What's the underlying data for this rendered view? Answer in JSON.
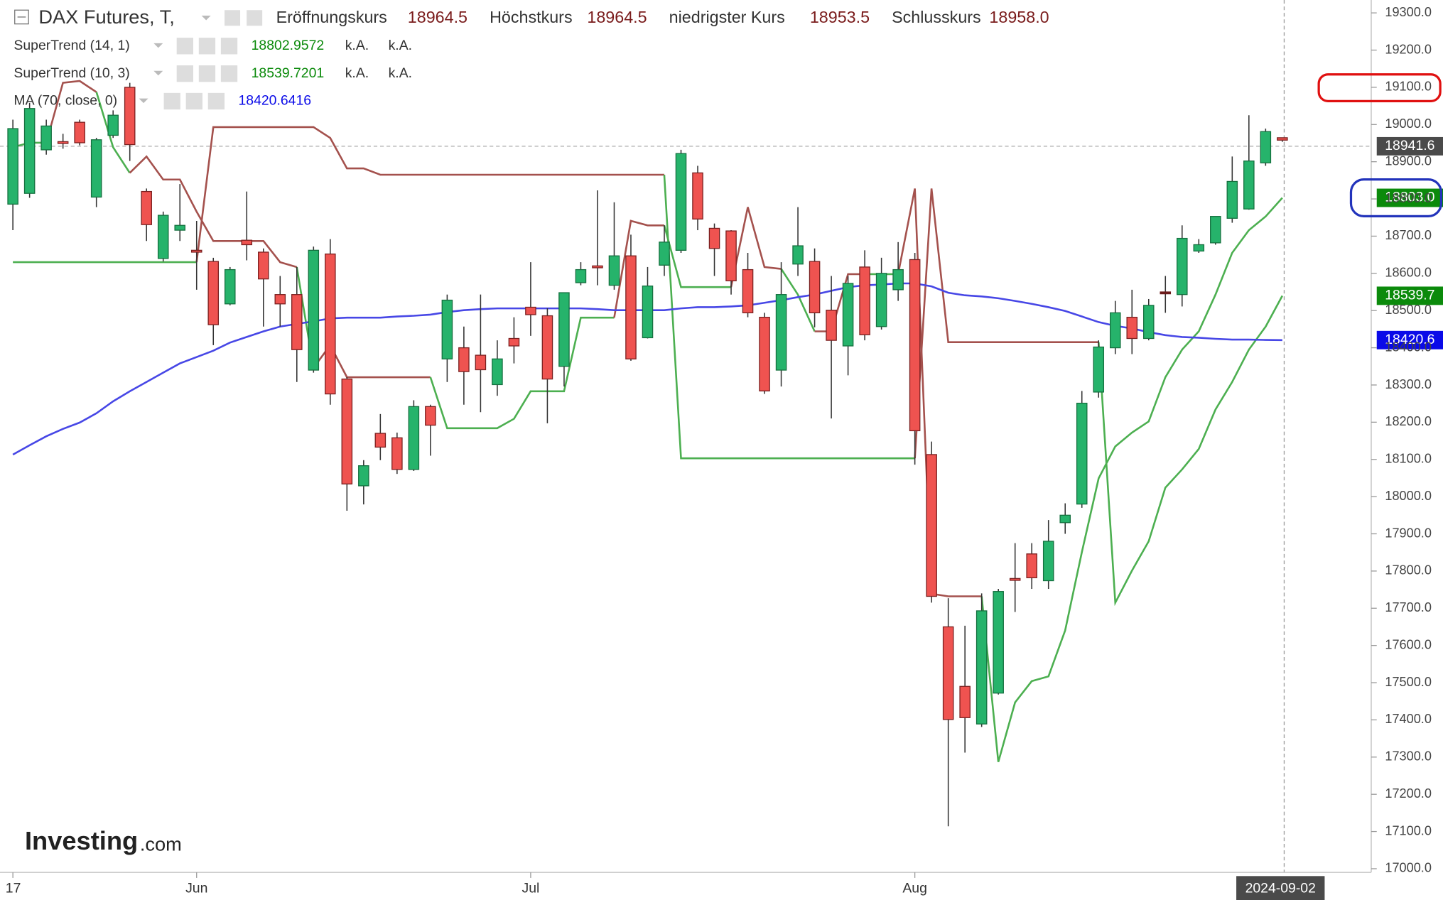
{
  "chart_data": {
    "type": "candlestick",
    "title": "DAX Futures, T,",
    "ohlc_fields": [
      {
        "name": "Eröffnungskurs",
        "value": "18964.5"
      },
      {
        "name": "Höchstkurs",
        "value": "18964.5"
      },
      {
        "name": "niedrigster Kurs",
        "value": "18953.5"
      },
      {
        "name": "Schlusskurs",
        "value": "18958.0"
      }
    ],
    "watermark": {
      "brand": "Investing",
      "suffix": ".com"
    },
    "categories": [
      "17",
      null,
      null,
      null,
      null,
      null,
      null,
      null,
      null,
      null,
      null,
      "Jun",
      null,
      null,
      null,
      null,
      null,
      null,
      null,
      null,
      null,
      null,
      null,
      null,
      null,
      null,
      null,
      null,
      null,
      null,
      null,
      "Jul",
      null,
      null,
      null,
      null,
      null,
      null,
      null,
      null,
      null,
      null,
      null,
      null,
      null,
      null,
      null,
      null,
      null,
      null,
      null,
      null,
      null,
      null,
      "Aug",
      null,
      null,
      null,
      null,
      null,
      null,
      null,
      null,
      null,
      null,
      null,
      null,
      null,
      null,
      null,
      null,
      null,
      null,
      null,
      null,
      null,
      null
    ],
    "open": [
      18786,
      18815,
      18932,
      18954,
      19006,
      18805,
      18971,
      19100,
      18820,
      18640,
      18716,
      18662,
      18632,
      18518,
      18689,
      18657,
      18543,
      18543,
      18340,
      18652,
      18316,
      18029,
      18170,
      18158,
      18073,
      18242,
      18370,
      18400,
      18380,
      18301,
      18425,
      18509,
      18486,
      18350,
      18575,
      18620,
      18568,
      18647,
      18427,
      18622,
      18662,
      18870,
      18721,
      18714,
      18610,
      18482,
      18340,
      18625,
      18632,
      18501,
      18405,
      18617,
      18457,
      18556,
      18637,
      18113,
      17650,
      17490,
      17389,
      17472,
      17780,
      17846,
      17774,
      17930,
      17980,
      18281,
      18400,
      18482,
      18425,
      18550,
      18543,
      18660,
      18682,
      18748,
      18773,
      18897,
      18964.5
    ],
    "high": [
      19013,
      19058,
      19013,
      18975,
      19013,
      18964,
      19038,
      19112,
      18828,
      18766,
      18840,
      18741,
      18642,
      18617,
      18820,
      18667,
      18593,
      18617,
      18672,
      18692,
      18321,
      18098,
      18222,
      18172,
      18259,
      18247,
      18543,
      18457,
      18543,
      18420,
      18482,
      18630,
      18506,
      18548,
      18630,
      18823,
      18791,
      18704,
      18617,
      18729,
      18932,
      18889,
      18734,
      18716,
      18655,
      18494,
      18630,
      18778,
      18667,
      18593,
      18593,
      18662,
      18642,
      18684,
      18655,
      18148,
      17727,
      17653,
      17740,
      17752,
      17875,
      17875,
      17937,
      17982,
      18284,
      18420,
      18526,
      18556,
      18531,
      18593,
      18729,
      18692,
      18753,
      18914,
      19025,
      18989,
      18964.5
    ],
    "low": [
      18716,
      18803,
      18919,
      18935,
      18944,
      18778,
      18964,
      18902,
      18687,
      18632,
      18687,
      18556,
      18407,
      18514,
      18635,
      18457,
      18457,
      18308,
      18333,
      18247,
      17962,
      17979,
      18098,
      18061,
      18069,
      18110,
      18308,
      18247,
      18227,
      18271,
      18358,
      18432,
      18197,
      18296,
      18568,
      18568,
      18556,
      18365,
      18425,
      18593,
      18655,
      18716,
      18593,
      18543,
      18482,
      18276,
      18296,
      18593,
      18455,
      18210,
      18326,
      18420,
      18449,
      18526,
      18086,
      17715,
      17114,
      17312,
      17381,
      17468,
      17690,
      17752,
      17752,
      17900,
      17970,
      18266,
      18383,
      18383,
      18420,
      18494,
      18511,
      18655,
      18677,
      18736,
      18771,
      18889,
      18953.5
    ],
    "close": [
      18989,
      19043,
      18996,
      18950,
      18951,
      18959,
      19025,
      18946,
      18731,
      18756,
      18729,
      18657,
      18462,
      18610,
      18677,
      18585,
      18518,
      18395,
      18662,
      18276,
      18034,
      18083,
      18133,
      18073,
      18242,
      18192,
      18528,
      18336,
      18341,
      18370,
      18405,
      18489,
      18316,
      18548,
      18610,
      18615,
      18647,
      18370,
      18566,
      18684,
      18922,
      18746,
      18667,
      18580,
      18494,
      18284,
      18543,
      18674,
      18494,
      18420,
      18573,
      18435,
      18600,
      18610,
      18177,
      17732,
      17401,
      17406,
      17693,
      17745,
      17775,
      17782,
      17880,
      17950,
      18251,
      18402,
      18494,
      18425,
      18514,
      18550,
      18694,
      18677,
      18753,
      18847,
      18902,
      18981,
      18958
    ],
    "up_color": "#26b36b",
    "down_color": "#ef5350",
    "series": [
      {
        "name": "SuperTrend (14, 1)",
        "style": "supertrend",
        "color": "#4caf50",
        "down_color": "#a4514d",
        "tag_color": "#0b8a0b",
        "extra_labels": [
          "k.A.",
          "k.A."
        ],
        "last_value_label": "18803.0",
        "values": [
          18939,
          18951,
          18951,
          19112,
          19117,
          19087,
          18939,
          18870,
          18914,
          18852,
          18852,
          18766,
          18687,
          18687,
          18687,
          18687,
          18630,
          18617,
          18346,
          18407,
          18321,
          18321,
          18321,
          18321,
          18321,
          18321,
          18184,
          18184,
          18184,
          18184,
          18209,
          18283,
          18283,
          18283,
          18481,
          18481,
          18481,
          18741,
          18729,
          18729,
          18563,
          18563,
          18563,
          18563,
          18778,
          18617,
          18612,
          18543,
          18444,
          18444,
          18598,
          18598,
          18598,
          18598,
          18828,
          17739,
          17732,
          17732,
          17732,
          17287,
          17447,
          17504,
          17517,
          17640,
          17851,
          18049,
          18135,
          18172,
          18202,
          18321,
          18395,
          18444,
          18543,
          18655,
          18716,
          18753,
          18802.9572
        ]
      },
      {
        "name": "SuperTrend (10, 3)",
        "style": "supertrend",
        "color": "#4caf50",
        "down_color": "#a4514d",
        "tag_color": "#0b8a0b",
        "extra_labels": [
          "k.A.",
          "k.A."
        ],
        "last_value_label": "18539.7",
        "values": [
          18630,
          18630,
          18630,
          18630,
          18630,
          18630,
          18630,
          18630,
          18630,
          18630,
          18630,
          18630,
          18993,
          18993,
          18993,
          18993,
          18993,
          18993,
          18993,
          18964,
          18882,
          18882,
          18865,
          18865,
          18865,
          18865,
          18865,
          18865,
          18865,
          18865,
          18865,
          18865,
          18865,
          18865,
          18865,
          18865,
          18865,
          18865,
          18865,
          18865,
          18103,
          18103,
          18103,
          18103,
          18103,
          18103,
          18103,
          18103,
          18103,
          18103,
          18103,
          18103,
          18103,
          18103,
          18103,
          18828,
          18415,
          18415,
          18415,
          18415,
          18415,
          18415,
          18415,
          18415,
          18415,
          18415,
          17715,
          17801,
          17880,
          18024,
          18073,
          18128,
          18234,
          18308,
          18395,
          18457,
          18539.7201
        ]
      },
      {
        "name": "MA (70, close, 0)",
        "style": "line",
        "color": "#4747e6",
        "tag_color": "#0a0ae8",
        "last_value_label": "18420.6",
        "values": [
          18113,
          18138,
          18162,
          18182,
          18199,
          18224,
          18256,
          18283,
          18308,
          18333,
          18358,
          18375,
          18392,
          18414,
          18429,
          18444,
          18457,
          18464,
          18471,
          18479,
          18481,
          18481,
          18481,
          18484,
          18486,
          18489,
          18496,
          18501,
          18504,
          18506,
          18506,
          18506,
          18506,
          18506,
          18506,
          18504,
          18501,
          18501,
          18501,
          18501,
          18506,
          18509,
          18509,
          18511,
          18514,
          18521,
          18528,
          18536,
          18543,
          18553,
          18563,
          18568,
          18570,
          18573,
          18573,
          18565,
          18548,
          18541,
          18538,
          18533,
          18526,
          18518,
          18509,
          18499,
          18484,
          18469,
          18459,
          18452,
          18442,
          18434,
          18429,
          18427,
          18424,
          18422,
          18422,
          18421,
          18420.6416
        ]
      }
    ],
    "crosshair": {
      "value": 18941.6,
      "label": "2024-09-02"
    },
    "ylim": [
      17000,
      19300
    ],
    "yticks": [
      {
        "value": 17000,
        "label": "17000.0"
      },
      {
        "value": 17100,
        "label": "17100.0"
      },
      {
        "value": 17200,
        "label": "17200.0"
      },
      {
        "value": 17300,
        "label": "17300.0"
      },
      {
        "value": 17400,
        "label": "17400.0"
      },
      {
        "value": 17500,
        "label": "17500.0"
      },
      {
        "value": 17600,
        "label": "17600.0"
      },
      {
        "value": 17700,
        "label": "17700.0"
      },
      {
        "value": 17800,
        "label": "17800.0"
      },
      {
        "value": 17900,
        "label": "17900.0"
      },
      {
        "value": 18000,
        "label": "18000.0"
      },
      {
        "value": 18100,
        "label": "18100.0"
      },
      {
        "value": 18200,
        "label": "18200.0"
      },
      {
        "value": 18300,
        "label": "18300.0"
      },
      {
        "value": 18400,
        "label": "18400.0"
      },
      {
        "value": 18500,
        "label": "18500.0"
      },
      {
        "value": 18600,
        "label": "18600.0"
      },
      {
        "value": 18700,
        "label": "18700.0"
      },
      {
        "value": 18800,
        "label": "18800.0"
      },
      {
        "value": 18900,
        "label": "18900.0"
      },
      {
        "value": 19000,
        "label": "19000.0"
      },
      {
        "value": 19100,
        "label": "19100.0"
      },
      {
        "value": 19200,
        "label": "19200.0"
      },
      {
        "value": 19300,
        "label": "19300.0"
      }
    ],
    "grid": false
  }
}
